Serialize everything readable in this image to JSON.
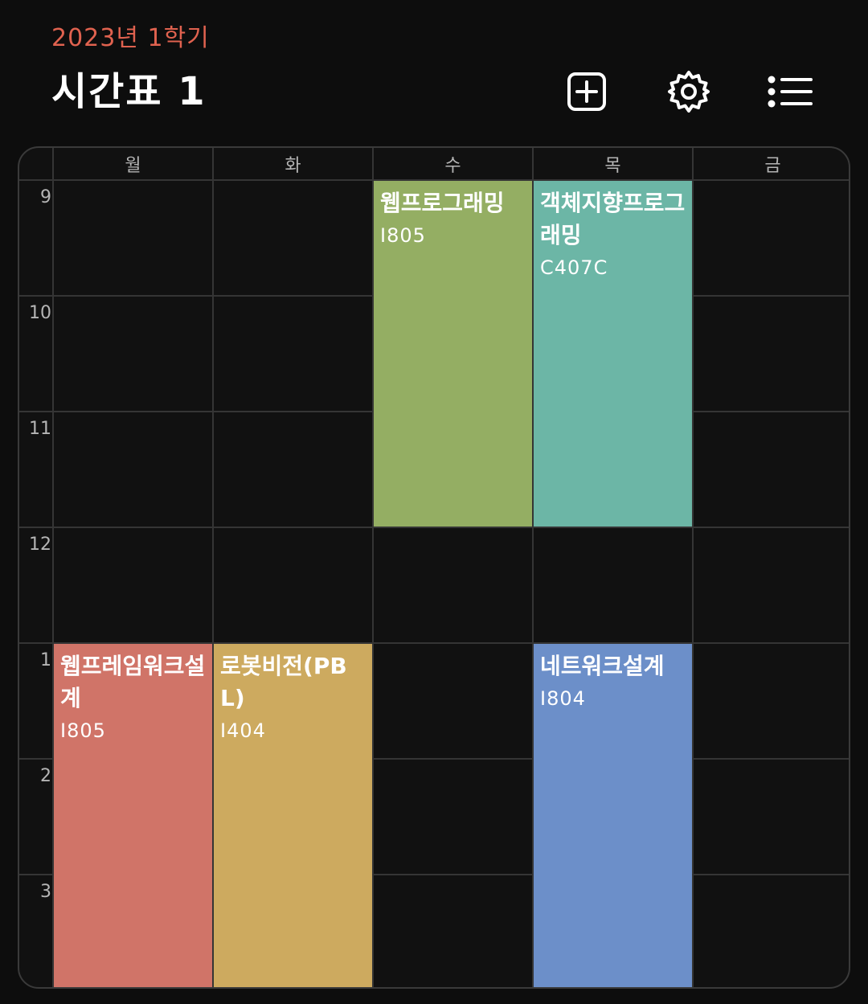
{
  "header": {
    "semester": "2023년 1학기",
    "title": "시간표 1"
  },
  "toolbar": {
    "add_icon": "add-square-icon",
    "settings_icon": "gear-icon",
    "list_icon": "list-icon"
  },
  "days": [
    "월",
    "화",
    "수",
    "목",
    "금"
  ],
  "hours": [
    "9",
    "10",
    "11",
    "12",
    "1",
    "2",
    "3"
  ],
  "courses": [
    {
      "name": "웹프로그래밍",
      "room": "I805",
      "day": "수",
      "start": "9",
      "end": "12",
      "color": "#94ae63"
    },
    {
      "name": "객체지향프로그래밍",
      "room": "C407C",
      "day": "목",
      "start": "9",
      "end": "12",
      "color": "#6cb6a6"
    },
    {
      "name": "웹프레임워크설계",
      "room": "I805",
      "day": "월",
      "start": "1",
      "end": "4",
      "color": "#d07468"
    },
    {
      "name": "로봇비전(PBL)",
      "room": "I404",
      "day": "화",
      "start": "1",
      "end": "4",
      "color": "#cdaa5f"
    },
    {
      "name": "네트워크설계",
      "room": "I804",
      "day": "목",
      "start": "1",
      "end": "4",
      "color": "#6c8fc9"
    }
  ],
  "colors": {
    "accent": "#e0624f",
    "background": "#0d0d0d",
    "grid": "#353535"
  }
}
